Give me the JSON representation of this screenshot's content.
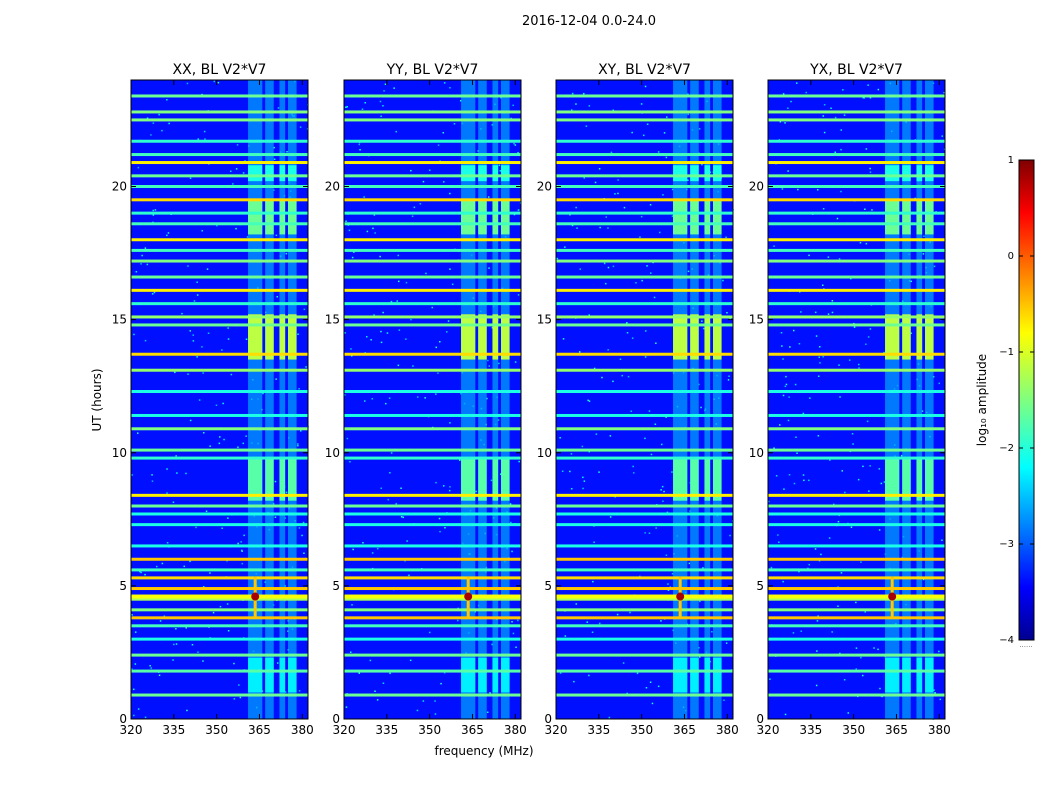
{
  "chart_data": {
    "type": "heatmap",
    "suptitle": "2016-12-04 0.0-24.0",
    "xlabel": "frequency (MHz)",
    "ylabel": "UT (hours)",
    "xlim": [
      320,
      382
    ],
    "ylim": [
      0,
      24
    ],
    "xticks": [
      320,
      335,
      350,
      365,
      380
    ],
    "xtick_labels": [
      "320",
      "335",
      "350",
      "365",
      "380"
    ],
    "yticks": [
      0,
      5,
      10,
      15,
      20
    ],
    "ytick_labels": [
      "0",
      "5",
      "10",
      "15",
      "20"
    ],
    "panels": [
      {
        "title": "XX, BL V2*V7"
      },
      {
        "title": "YY, BL V2*V7"
      },
      {
        "title": "XY, BL V2*V7"
      },
      {
        "title": "YX, BL V2*V7"
      }
    ],
    "colorbar": {
      "label": "log₁₀ amplitude",
      "range": [
        -4,
        1
      ],
      "ticks": [
        1,
        0,
        -1,
        -2,
        -3,
        -4
      ],
      "tick_labels": [
        "1",
        "0",
        "−1",
        "−2",
        "−3",
        "−4"
      ],
      "colormap": "jet",
      "extra_label": "......"
    },
    "features": {
      "background_log_amp": -3.3,
      "rfi_band_mhz": [
        361,
        378
      ],
      "rfi_subbands_mhz": [
        [
          361,
          366
        ],
        [
          367,
          370
        ],
        [
          372,
          374
        ],
        [
          375,
          378
        ]
      ],
      "peak_time_ut": 4.6,
      "peak_freq_mhz": 363.5,
      "peak_log_amp": 0.8,
      "horizontal_bands_ut": [
        {
          "t": 0.9,
          "v": -1.6
        },
        {
          "t": 1.8,
          "v": -1.7
        },
        {
          "t": 2.4,
          "v": -1.6
        },
        {
          "t": 3.0,
          "v": -2.0
        },
        {
          "t": 3.5,
          "v": -1.8
        },
        {
          "t": 3.8,
          "v": -0.6
        },
        {
          "t": 4.1,
          "v": -1.5
        },
        {
          "t": 4.5,
          "v": -1.3
        },
        {
          "t": 4.9,
          "v": -0.6
        },
        {
          "t": 5.3,
          "v": -0.7
        },
        {
          "t": 5.6,
          "v": -1.8
        },
        {
          "t": 6.0,
          "v": -0.6
        },
        {
          "t": 6.5,
          "v": -2.0
        },
        {
          "t": 7.3,
          "v": -2.0
        },
        {
          "t": 7.7,
          "v": -2.0
        },
        {
          "t": 8.0,
          "v": -1.6
        },
        {
          "t": 8.4,
          "v": -0.8
        },
        {
          "t": 9.8,
          "v": -1.9
        },
        {
          "t": 10.1,
          "v": -1.6
        },
        {
          "t": 10.9,
          "v": -1.5
        },
        {
          "t": 11.4,
          "v": -2.0
        },
        {
          "t": 12.3,
          "v": -2.0
        },
        {
          "t": 13.1,
          "v": -1.4
        },
        {
          "t": 13.7,
          "v": -0.7
        },
        {
          "t": 14.8,
          "v": -1.6
        },
        {
          "t": 15.1,
          "v": -1.4
        },
        {
          "t": 15.6,
          "v": -1.9
        },
        {
          "t": 16.1,
          "v": -0.8
        },
        {
          "t": 16.6,
          "v": -1.6
        },
        {
          "t": 17.2,
          "v": -1.5
        },
        {
          "t": 17.6,
          "v": -1.8
        },
        {
          "t": 18.0,
          "v": -0.8
        },
        {
          "t": 18.6,
          "v": -1.8
        },
        {
          "t": 19.0,
          "v": -1.9
        },
        {
          "t": 19.5,
          "v": -0.7
        },
        {
          "t": 20.0,
          "v": -1.8
        },
        {
          "t": 20.4,
          "v": -1.6
        },
        {
          "t": 20.9,
          "v": -0.8
        },
        {
          "t": 21.2,
          "v": -1.8
        },
        {
          "t": 21.7,
          "v": -1.9
        },
        {
          "t": 22.5,
          "v": -1.5
        },
        {
          "t": 22.8,
          "v": -1.5
        },
        {
          "t": 23.4,
          "v": -1.6
        }
      ],
      "rfi_blocks_ut": [
        {
          "t0": 1.0,
          "t1": 2.3,
          "v": -2.2
        },
        {
          "t0": 8.2,
          "t1": 9.8,
          "v": -1.7
        },
        {
          "t0": 13.5,
          "t1": 15.2,
          "v": -1.2
        },
        {
          "t0": 18.2,
          "t1": 19.5,
          "v": -1.6
        },
        {
          "t0": 20.2,
          "t1": 20.8,
          "v": -2.0
        }
      ]
    }
  }
}
